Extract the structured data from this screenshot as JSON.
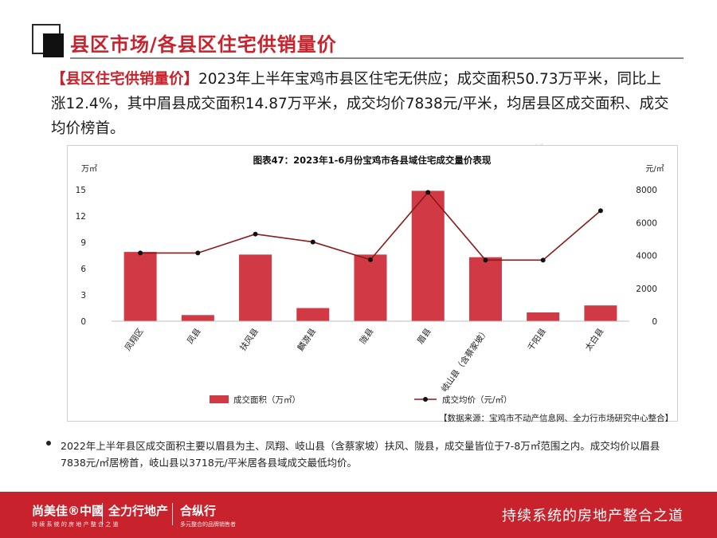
{
  "header": {
    "title": "县区市场/各县区住宅供销量价"
  },
  "summary": {
    "highlight": "【县区住宅供销量价】",
    "text": "2023年上半年宝鸡市县区住宅无供应；成交面积50.73万平米，同比上涨12.4%，其中眉县成交面积14.87万平米，成交均价7838元/平米，均居县区成交面积、成交均价榜首。"
  },
  "chart_data": {
    "type": "bar",
    "title": "图表47：2023年1-6月份宝鸡市各县域住宅成交量价表现",
    "left_unit": "万㎡",
    "right_unit": "元/㎡",
    "categories": [
      "凤翔区",
      "凤县",
      "扶风县",
      "麟游县",
      "陇县",
      "眉县",
      "岐山县（含蔡家坡）",
      "千阳县",
      "太白县"
    ],
    "series": [
      {
        "name": "成交面积（万㎡）",
        "type": "bar",
        "axis": "left",
        "color": "#d13a44",
        "values": [
          7.9,
          0.7,
          7.6,
          1.5,
          7.6,
          14.87,
          7.3,
          1.0,
          1.8
        ]
      },
      {
        "name": "成交均价（元/㎡）",
        "type": "line",
        "axis": "right",
        "color": "#8b1a1a",
        "values": [
          4150,
          4150,
          5300,
          4820,
          3740,
          7838,
          3718,
          3718,
          6720
        ]
      }
    ],
    "left_ticks": [
      "0",
      "3",
      "6",
      "9",
      "12",
      "15"
    ],
    "right_ticks": [
      "0",
      "2000",
      "4000",
      "6000",
      "8000"
    ],
    "ylim_left": [
      0,
      15
    ],
    "ylim_right": [
      0,
      8000
    ],
    "grid": false,
    "legend_position": "bottom"
  },
  "source": "【数据来源：宝鸡市不动产信息网、全力行市场研究中心整合】",
  "note": "2022年上半年县区成交面积主要以眉县为主、凤翔、岐山县（含蔡家坡）扶风、陇县，成交量皆位于7-8万㎡范围之内。成交均价以眉县7838元/㎡居榜首，岐山县以3718元/平米居各县域成交最低均价。",
  "footer": {
    "brand1": "尚美佳®中國",
    "brand1_sub": "持 续 系 统 的 房 地 产 整 合 之 道",
    "brand2": "全力行地产",
    "brand3": "合纵行",
    "brand3_sub": "多元整合的品牌销售者",
    "slogan": "持续系统的房地产整合之道"
  },
  "watermark": {
    "text1": "尚美佳 中國",
    "text2": "全力行地产",
    "text3": "合纵行"
  }
}
